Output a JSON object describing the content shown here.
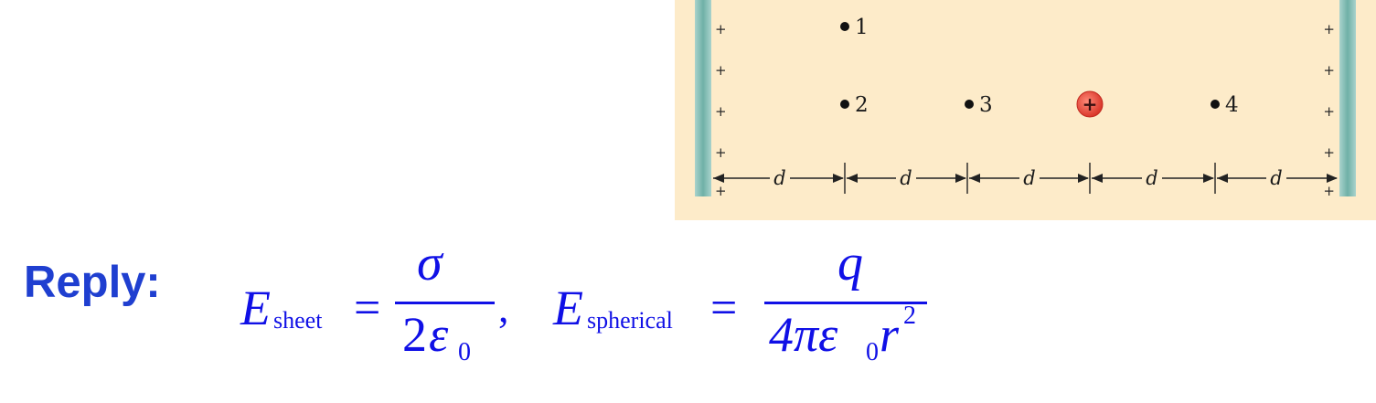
{
  "figure": {
    "plate_sign": "+",
    "points": [
      {
        "label": "1"
      },
      {
        "label": "2"
      },
      {
        "label": "3"
      },
      {
        "label": "4"
      }
    ],
    "charge_sign": "+",
    "spacing_label": "d",
    "colors": {
      "background": "#fdebc9",
      "plate": "#7fb8b0",
      "charge": "#e8473a"
    }
  },
  "reply": {
    "label": "Reply:",
    "eq1": {
      "lhs": "E",
      "lhs_sub": "sheet",
      "equals": "=",
      "numerator": "σ",
      "den_coeff": "2",
      "den_symbol": "ε",
      "den_sub": "0",
      "separator": ","
    },
    "eq2": {
      "lhs": "E",
      "lhs_sub": "spherical",
      "equals": "=",
      "numerator": "q",
      "den_text": "4πε",
      "den_sub": "0",
      "den_r": "r",
      "den_exp": "2"
    }
  }
}
